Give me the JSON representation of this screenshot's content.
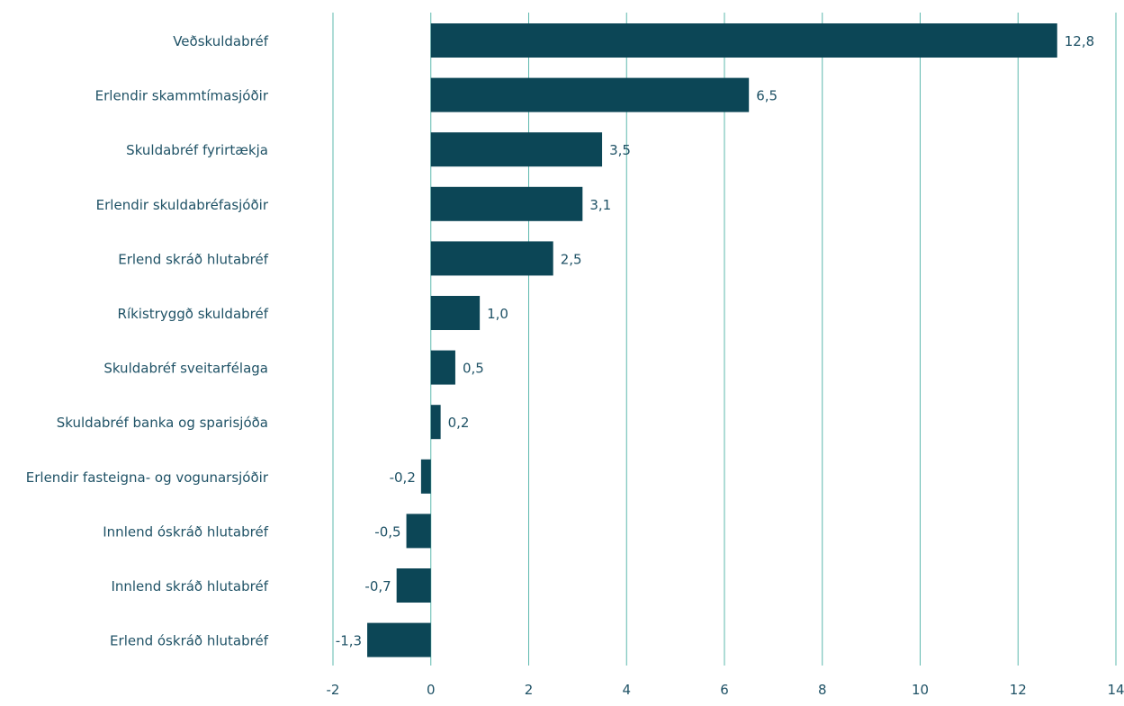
{
  "chart_data": {
    "type": "bar",
    "orientation": "horizontal",
    "categories": [
      "Veðskuldabréf",
      "Erlendir skammtímasjóðir",
      "Skuldabréf fyrirtækja",
      "Erlendir skuldabréfasjóðir",
      "Erlend skráð hlutabréf",
      "Ríkistryggð skuldabréf",
      "Skuldabréf sveitarfélaga",
      "Skuldabréf banka og sparisjóða",
      "Erlendir fasteigna- og vogunarsjóðir",
      "Innlend óskráð hlutabréf",
      "Innlend skráð hlutabréf",
      "Erlend óskráð hlutabréf"
    ],
    "values": [
      12.8,
      6.5,
      3.5,
      3.1,
      2.5,
      1.0,
      0.5,
      0.2,
      -0.2,
      -0.5,
      -0.7,
      -1.3
    ],
    "value_labels": [
      "12,8",
      "6,5",
      "3,5",
      "3,1",
      "2,5",
      "1,0",
      "0,5",
      "0,2",
      "-0,2",
      "-0,5",
      "-0,7",
      "-1,3"
    ],
    "xlim": [
      -2,
      14
    ],
    "x_ticks": [
      -2,
      0,
      2,
      4,
      6,
      8,
      10,
      12,
      14
    ],
    "x_tick_labels": [
      "-2",
      "0",
      "2",
      "4",
      "6",
      "8",
      "10",
      "12",
      "14"
    ],
    "title": "",
    "xlabel": "",
    "ylabel": "",
    "grid": "vertical",
    "legend": "none",
    "colors": {
      "bar": "#0c4656",
      "grid": "#5db8ae",
      "text": "#1f5266"
    }
  }
}
